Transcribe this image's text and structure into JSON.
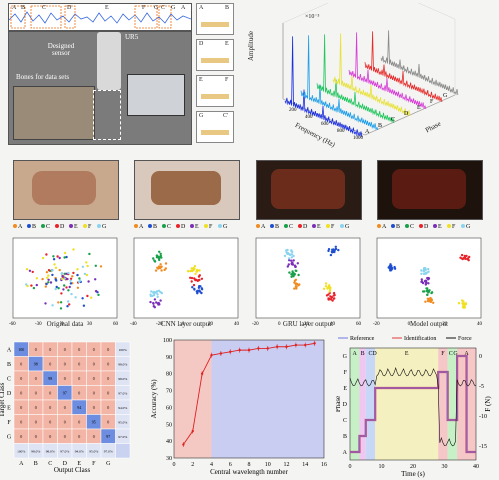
{
  "panel_a": {
    "strip_labels": [
      "A",
      "B",
      "C",
      "D",
      "E",
      "F",
      "G",
      "C",
      "G",
      "A"
    ],
    "callout_ur5": "UR5",
    "callout_sensor": "Designed sensor",
    "callout_bones": "Bones for data sets",
    "zoom_pairs": [
      [
        "A",
        "B"
      ],
      [
        "D",
        "E"
      ],
      [
        "E",
        "F"
      ],
      [
        "G",
        "C'"
      ]
    ]
  },
  "panel_3d": {
    "exponent": "×10⁻³",
    "zlabel": "Amplitude",
    "xlabel": "Frequency (Hz)",
    "ylabel": "Phase",
    "xticks": [
      "200",
      "400",
      "600",
      "800",
      "1000"
    ],
    "phase_ticks": [
      "A",
      "B",
      "C",
      "D",
      "E",
      "F",
      "G"
    ],
    "colors": [
      "#1b2fe0",
      "#1e9ee8",
      "#22c55e",
      "#e7e23a",
      "#d63cd6",
      "#e52b2b",
      "#8a8a8a"
    ]
  },
  "tsne": {
    "legend": [
      "A",
      "B",
      "C",
      "D",
      "E",
      "F",
      "G"
    ],
    "legend_colors": [
      "#f08c20",
      "#1f4fd0",
      "#19a04a",
      "#e8232a",
      "#7b2fb8",
      "#f0e020",
      "#8ad4f0"
    ],
    "panels": [
      {
        "caption": "Original data",
        "xticks": [
          "-60",
          "-30",
          "0",
          "30",
          "60"
        ]
      },
      {
        "caption": "CNN layer output",
        "xticks": [
          "-40",
          "-20",
          "0",
          "20",
          "40"
        ]
      },
      {
        "caption": "GRU layer output",
        "xticks": [
          "-20",
          "0",
          "20",
          "40",
          "60"
        ]
      },
      {
        "caption": "Model output",
        "xticks": [
          "-20",
          "0",
          "20",
          "40"
        ]
      }
    ]
  },
  "chart_data": [
    {
      "type": "heatmap",
      "xlabel": "Output Class",
      "ylabel": "Target Class",
      "categories": [
        "A",
        "B",
        "C",
        "D",
        "E",
        "F",
        "G"
      ],
      "values": [
        [
          100,
          0,
          0,
          0,
          0,
          0,
          0
        ],
        [
          0,
          98,
          0,
          0,
          0,
          0,
          0
        ],
        [
          0,
          0,
          98,
          0,
          0,
          0,
          0
        ],
        [
          0,
          0,
          0,
          97,
          0,
          0,
          0
        ],
        [
          0,
          0,
          0,
          0,
          94,
          0,
          0
        ],
        [
          0,
          0,
          0,
          0,
          0,
          95,
          0
        ],
        [
          0,
          0,
          0,
          0,
          0,
          0,
          97
        ]
      ],
      "row_pct": [
        "100%",
        "98.0%",
        "98.0%",
        "97.0%",
        "94.0%",
        "95.0%",
        "97.0%"
      ],
      "col_pct": [
        "100%",
        "98.0%",
        "98.0%",
        "97.0%",
        "94.0%",
        "95.0%",
        "97.0%"
      ]
    },
    {
      "type": "line",
      "xlabel": "Central wavelength number",
      "ylabel": "Accuracy (%)",
      "xlim": [
        0,
        16
      ],
      "ylim": [
        30,
        100
      ],
      "xticks": [
        "0",
        "2",
        "4",
        "6",
        "8",
        "10",
        "12",
        "14",
        "16"
      ],
      "yticks": [
        "30",
        "40",
        "50",
        "60",
        "70",
        "80",
        "90",
        "100"
      ],
      "x": [
        1,
        2,
        3,
        4,
        5,
        6,
        7,
        8,
        9,
        10,
        11,
        12,
        13,
        14,
        15
      ],
      "y": [
        38,
        46,
        80,
        91,
        92,
        93,
        94,
        94,
        95,
        95,
        96,
        96,
        97,
        97,
        98
      ],
      "shaded": [
        {
          "from": 0,
          "to": 4,
          "color": "#f4c9c4"
        },
        {
          "from": 4,
          "to": 16,
          "color": "#c9cdf2"
        }
      ]
    },
    {
      "type": "line",
      "legend": [
        "Reference",
        "Identification",
        "Force"
      ],
      "xlabel": "Time (s)",
      "ylabel": "Phase",
      "y2label": "F (N)",
      "xticks": [
        "0",
        "10",
        "20",
        "30",
        "40"
      ],
      "phase_ticks": [
        "A",
        "B",
        "C",
        "D",
        "E",
        "F",
        "G"
      ],
      "y2ticks": [
        "0",
        "-5",
        "-10",
        "-15"
      ],
      "top_labels": [
        "A",
        "B",
        "C",
        "D",
        "E",
        "F",
        "C",
        "G",
        "A"
      ],
      "xlim": [
        0,
        40
      ]
    }
  ]
}
